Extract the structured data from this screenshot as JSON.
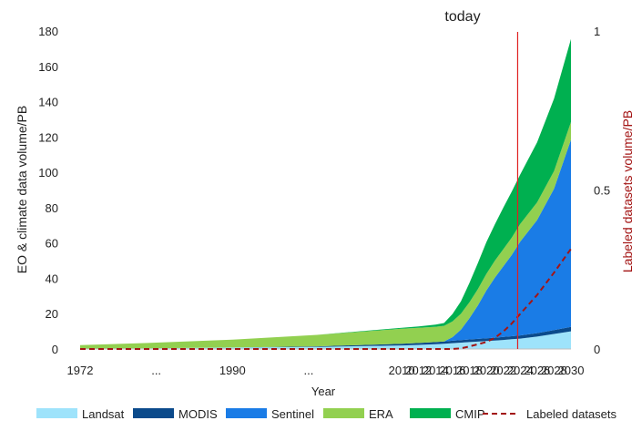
{
  "chart_data": {
    "type": "area",
    "xlabel": "Year",
    "ylabel_left": "EO & climate data volume/PB",
    "ylabel_right": "Labeled datasets volume/PB",
    "annotation": "today",
    "annotation_x": 2023.7,
    "ylim_left": [
      0,
      180
    ],
    "ylim_right": [
      0,
      1
    ],
    "left_ticks": [
      "0",
      "20",
      "40",
      "60",
      "80",
      "100",
      "120",
      "140",
      "160",
      "180"
    ],
    "right_ticks": [
      "0",
      "0.5",
      "1"
    ],
    "x_tick_labels": [
      "1972",
      "...",
      "1990",
      "...",
      "2010",
      "2012",
      "2014",
      "2016",
      "2018",
      "2020",
      "2022",
      "2024",
      "2026",
      "2028",
      "2030"
    ],
    "x_tick_positions": [
      1972,
      1981,
      1990,
      1999,
      2010,
      2012,
      2014,
      2016,
      2018,
      2020,
      2022,
      2024,
      2026,
      2028,
      2030
    ],
    "x_values": [
      1972,
      1980,
      1990,
      2000,
      2010,
      2012,
      2014,
      2015,
      2016,
      2017,
      2018,
      2019,
      2020,
      2021,
      2022,
      2023,
      2024,
      2026,
      2028,
      2030
    ],
    "legend_position": "bottom",
    "grid": false,
    "colors": {
      "Landsat": "#9ee3fb",
      "MODIS": "#0b4a8b",
      "Sentinel": "#1a7ce6",
      "ERA": "#92d050",
      "CMIP": "#00b050",
      "Labeled datasets": "#a31515",
      "today_line": "#e02020"
    },
    "series": [
      {
        "name": "Landsat",
        "stack": true,
        "values": [
          0.2,
          0.4,
          0.8,
          1.2,
          2.0,
          2.3,
          2.7,
          3.0,
          3.3,
          3.6,
          3.9,
          4.2,
          4.5,
          4.8,
          5.1,
          5.5,
          5.9,
          7.0,
          8.5,
          10.0
        ]
      },
      {
        "name": "MODIS",
        "stack": true,
        "values": [
          0.0,
          0.0,
          0.0,
          0.3,
          1.0,
          1.1,
          1.2,
          1.3,
          1.4,
          1.4,
          1.5,
          1.5,
          1.6,
          1.6,
          1.7,
          1.7,
          1.8,
          2.0,
          2.2,
          2.5
        ]
      },
      {
        "name": "Sentinel",
        "stack": true,
        "values": [
          0.0,
          0.0,
          0.0,
          0.0,
          0.0,
          0.0,
          0.0,
          0.0,
          2.0,
          6.0,
          12.0,
          19.0,
          27.0,
          34.0,
          40.0,
          46.0,
          53.0,
          64.0,
          80.0,
          106.0
        ]
      },
      {
        "name": "ERA",
        "stack": true,
        "values": [
          2.0,
          3.0,
          4.5,
          6.5,
          8.5,
          8.6,
          8.7,
          8.8,
          8.9,
          9.0,
          9.0,
          9.2,
          9.4,
          9.6,
          9.7,
          9.8,
          10.0,
          10.0,
          10.0,
          10.0
        ]
      },
      {
        "name": "CMIP",
        "stack": true,
        "values": [
          0.0,
          0.0,
          0.0,
          0.0,
          0.5,
          0.8,
          1.2,
          1.6,
          4.2,
          7.0,
          11.0,
          14.8,
          18.0,
          20.5,
          23.5,
          26.0,
          28.0,
          34.0,
          41.0,
          47.0
        ]
      },
      {
        "name": "Labeled datasets",
        "axis": "right",
        "style": "dashed",
        "values": [
          0.0,
          0.0,
          0.0,
          0.0,
          0.0,
          0.0,
          0.0,
          0.0,
          0.0,
          0.002,
          0.008,
          0.015,
          0.022,
          0.035,
          0.055,
          0.08,
          0.11,
          0.17,
          0.24,
          0.315
        ]
      }
    ]
  }
}
